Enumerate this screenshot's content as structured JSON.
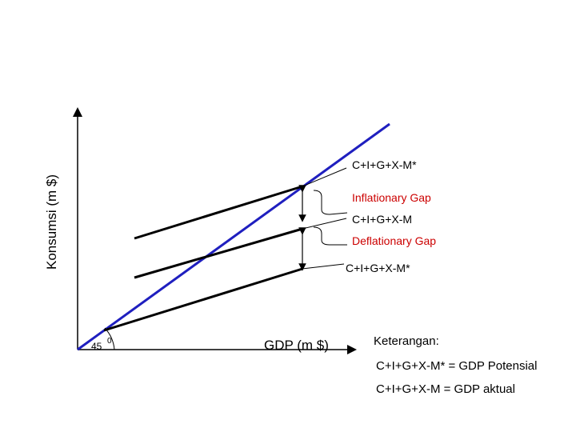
{
  "axes": {
    "y_label": "Konsumsi (m $)",
    "x_label": "GDP (m $)",
    "angle_label": "45",
    "angle_degree_mark": "0"
  },
  "lines": {
    "potential_upper": "C+I+G+X-M*",
    "actual": "C+I+G+X-M",
    "potential_lower": "C+I+G+X-M*"
  },
  "gaps": {
    "inflationary": "Inflationary Gap",
    "deflationary": "Deflationary Gap"
  },
  "legend": {
    "title": "Keterangan:",
    "line1": "C+I+G+X-M* = GDP Potensial",
    "line2": "C+I+G+X-M = GDP aktual"
  },
  "colors": {
    "diagonal": "#1f1fbf",
    "lines": "#000000",
    "gap_labels": "#cc0000"
  }
}
